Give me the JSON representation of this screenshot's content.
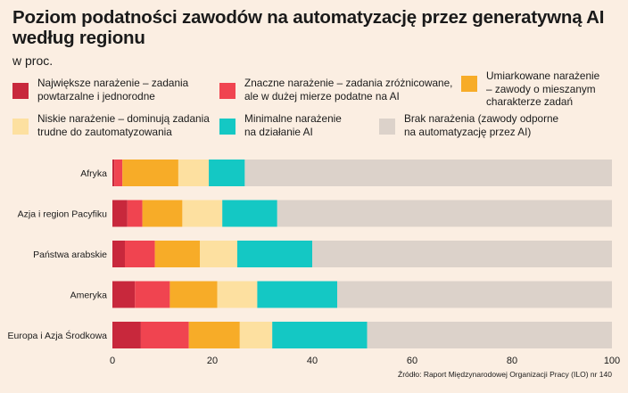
{
  "title": "Poziom podatności zawodów na automatyzację przez generatywną AI według regionu",
  "subtitle": "w proc.",
  "source": "Źródło: Raport Międzynarodowej Organizacji Pracy (ILO) nr 140",
  "colors": {
    "background": "#fbeee2",
    "series": [
      "#c8283c",
      "#f04450",
      "#f7ac28",
      "#fde0a0",
      "#14c8c4",
      "#dcd2ca"
    ]
  },
  "legend": [
    {
      "label": "Największe narażenie – zadania\npowtarzalne i jednorodne"
    },
    {
      "label": "Znaczne narażenie – zadania zróżnicowane,\nale w dużej mierze podatne na AI"
    },
    {
      "label": "Umiarkowane narażenie\n– zawody o mieszanym\ncharakterze zadań"
    },
    {
      "label": "Niskie narażenie – dominują zadania\ntrudne do zautomatyzowania"
    },
    {
      "label": "Minimalne narażenie\nna działanie AI"
    },
    {
      "label": "Brak narażenia (zawody odporne\nna automatyzację przez AI)"
    }
  ],
  "chart_data": {
    "type": "bar",
    "orientation": "horizontal",
    "stacked": true,
    "categories": [
      "Afryka",
      "Azja i region Pacyfiku",
      "Państwa arabskie",
      "Ameryka",
      "Europa i Azja Środkowa"
    ],
    "series": [
      {
        "name": "Największe narażenie – zadania powtarzalne i jednorodne",
        "values": [
          0.4,
          3.0,
          2.5,
          4.5,
          5.7
        ]
      },
      {
        "name": "Znaczne narażenie – zadania zróżnicowane, ale w dużej mierze podatne na AI",
        "values": [
          1.6,
          3.0,
          6.0,
          7.0,
          9.6
        ]
      },
      {
        "name": "Umiarkowane narażenie – zawody o mieszanym charakterze zadań",
        "values": [
          11.2,
          8.0,
          9.0,
          9.5,
          10.2
        ]
      },
      {
        "name": "Niskie narażenie – dominują zadania trudne do zautomatyzowania",
        "values": [
          6.1,
          8.0,
          7.5,
          8.0,
          6.5
        ]
      },
      {
        "name": "Minimalne narażenie na działanie AI",
        "values": [
          7.2,
          11.0,
          15.0,
          16.0,
          19.0
        ]
      },
      {
        "name": "Brak narażenia (zawody odporne na automatyzację przez AI)",
        "values": [
          73.5,
          67.0,
          60.0,
          55.0,
          49.0
        ]
      }
    ],
    "xlim": [
      0,
      100
    ],
    "xticks": [
      0,
      20,
      40,
      60,
      80,
      100
    ],
    "grid": false,
    "legend_position": "top"
  }
}
